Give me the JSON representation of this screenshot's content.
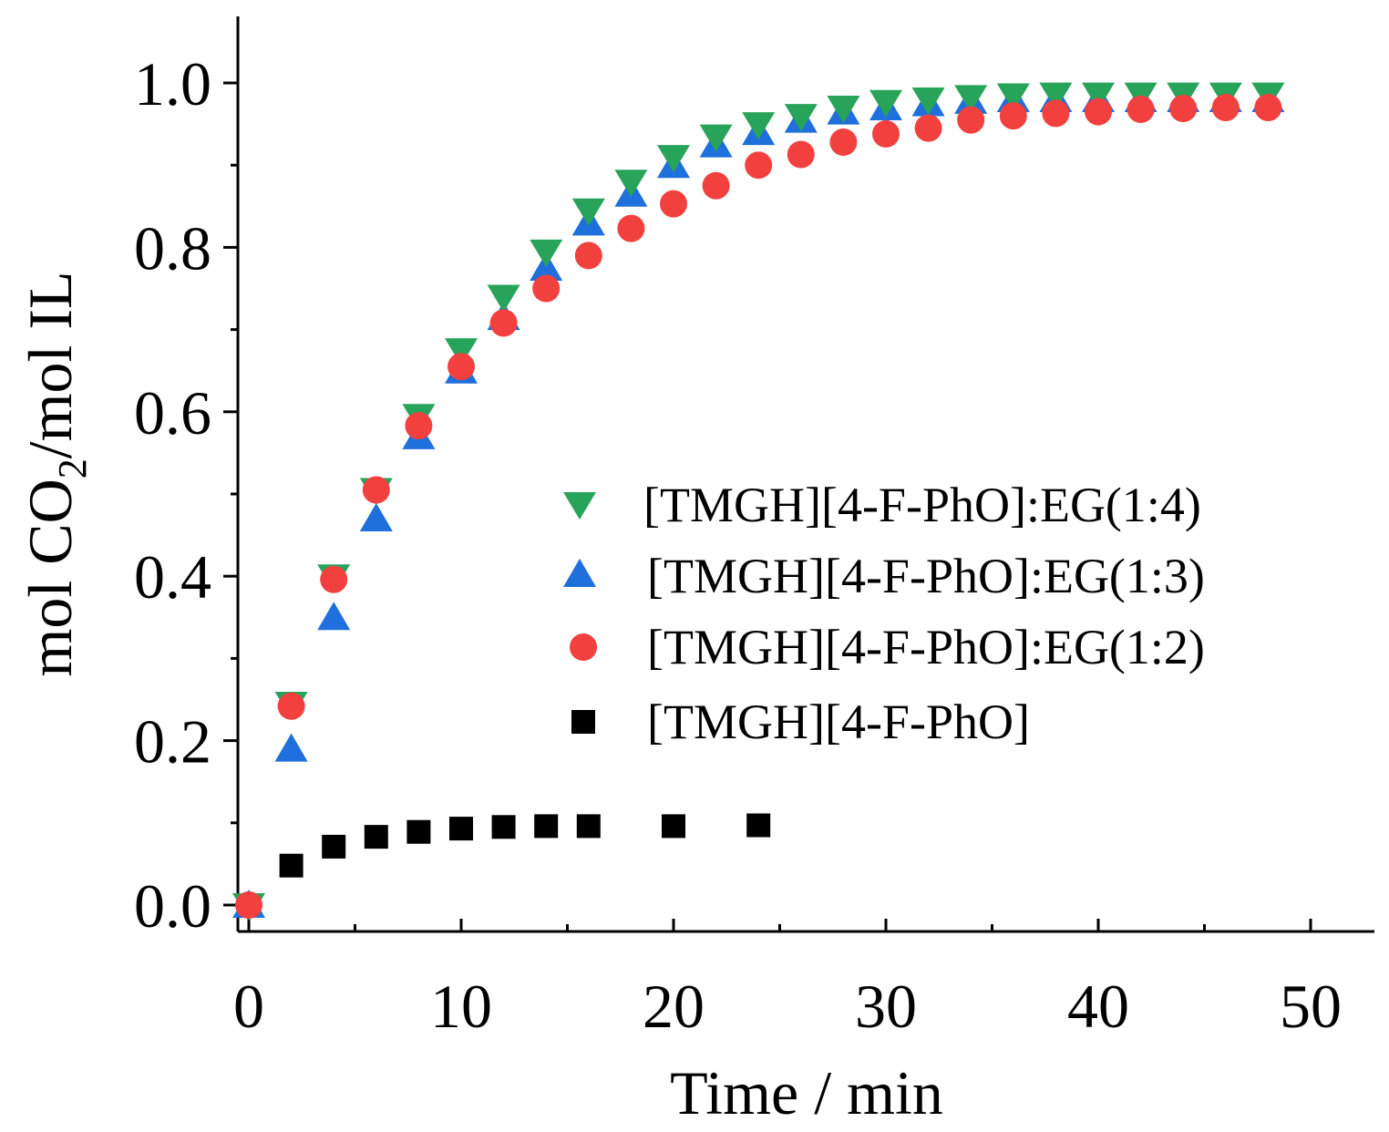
{
  "chart_data": {
    "type": "scatter",
    "title": "",
    "xlabel": "Time / min",
    "ylabel": "mol CO2/mol IL",
    "ylabel_parts": {
      "pre": "mol CO",
      "sub": "2",
      "post": "/mol IL"
    },
    "xlim": [
      -1,
      53
    ],
    "ylim": [
      -0.03,
      1.08
    ],
    "xticks": [
      0,
      10,
      20,
      30,
      40,
      50
    ],
    "xtick_labels": [
      "0",
      "10",
      "20",
      "30",
      "40",
      "50"
    ],
    "yticks": [
      0.0,
      0.2,
      0.4,
      0.6,
      0.8,
      1.0
    ],
    "ytick_labels": [
      "0.0",
      "0.2",
      "0.4",
      "0.6",
      "0.8",
      "1.0"
    ],
    "grid": false,
    "legend_position": "center-right",
    "series": [
      {
        "name": "[TMGH][4-F-PhO]:EG(1:4)",
        "marker": "triangle-down",
        "color": "#27a35a",
        "x": [
          0,
          2,
          4,
          6,
          8,
          10,
          12,
          14,
          16,
          18,
          20,
          22,
          24,
          26,
          28,
          30,
          32,
          34,
          36,
          38,
          40,
          42,
          44,
          46,
          48
        ],
        "y": [
          0.0,
          0.245,
          0.4,
          0.505,
          0.595,
          0.675,
          0.74,
          0.795,
          0.845,
          0.88,
          0.91,
          0.935,
          0.95,
          0.96,
          0.97,
          0.977,
          0.98,
          0.983,
          0.985,
          0.986,
          0.986,
          0.986,
          0.986,
          0.986,
          0.986
        ]
      },
      {
        "name": "[TMGH][4-F-PhO]:EG(1:3)",
        "marker": "triangle-up",
        "color": "#1f6fdc",
        "x": [
          0,
          2,
          4,
          6,
          8,
          10,
          12,
          14,
          16,
          18,
          20,
          22,
          24,
          26,
          28,
          30,
          32,
          34,
          36,
          38,
          40,
          42,
          44,
          46,
          48
        ],
        "y": [
          0.0,
          0.19,
          0.35,
          0.47,
          0.57,
          0.65,
          0.715,
          0.775,
          0.83,
          0.865,
          0.9,
          0.925,
          0.94,
          0.955,
          0.965,
          0.97,
          0.975,
          0.978,
          0.98,
          0.98,
          0.98,
          0.98,
          0.98,
          0.98,
          0.98
        ]
      },
      {
        "name": "[TMGH][4-F-PhO]:EG(1:2)",
        "marker": "circle",
        "color": "#f2403f",
        "x": [
          0,
          2,
          4,
          6,
          8,
          10,
          12,
          14,
          16,
          18,
          20,
          22,
          24,
          26,
          28,
          30,
          32,
          34,
          36,
          38,
          40,
          42,
          44,
          46,
          48
        ],
        "y": [
          0.0,
          0.242,
          0.396,
          0.505,
          0.583,
          0.655,
          0.708,
          0.75,
          0.79,
          0.823,
          0.853,
          0.875,
          0.9,
          0.913,
          0.928,
          0.938,
          0.945,
          0.955,
          0.96,
          0.963,
          0.965,
          0.968,
          0.969,
          0.97,
          0.97
        ]
      },
      {
        "name": "[TMGH][4-F-PhO]",
        "marker": "square",
        "color": "#000000",
        "x": [
          0,
          2,
          4,
          6,
          8,
          10,
          12,
          14,
          16,
          20,
          24
        ],
        "y": [
          0.0,
          0.048,
          0.071,
          0.083,
          0.089,
          0.093,
          0.095,
          0.096,
          0.096,
          0.096,
          0.097
        ]
      }
    ]
  }
}
